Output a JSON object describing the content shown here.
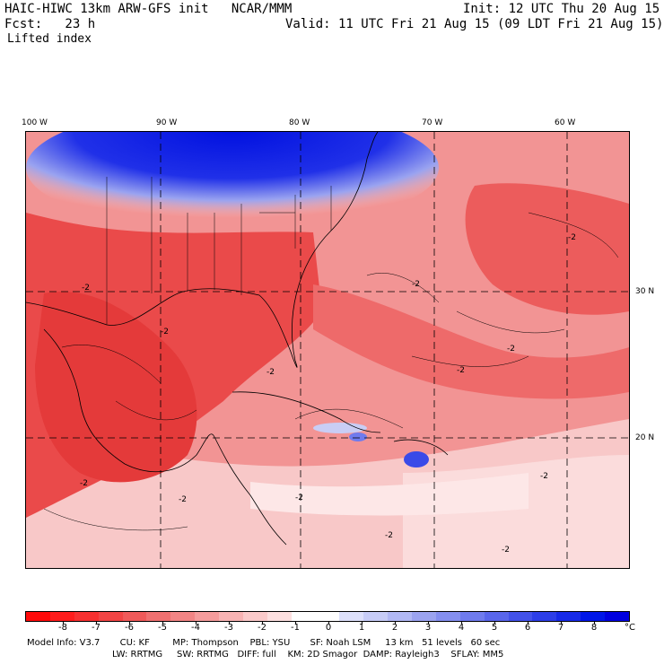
{
  "header": {
    "title_left": "HAIC-HIWC 13km ARW-GFS init   NCAR/MMM",
    "init": "Init: 12 UTC Thu 20 Aug 15",
    "fcst": "Fcst:   23 h",
    "valid": "Valid: 11 UTC Fri 21 Aug 15 (09 LDT Fri 21 Aug 15)",
    "field": "Lifted index"
  },
  "map": {
    "lon_labels": [
      "100 W",
      "90 W",
      "80 W",
      "70 W",
      "60 W"
    ],
    "lat_labels": [
      "30 N",
      "20 N"
    ],
    "contour_labels": [
      "-2",
      "-2",
      "-2",
      "-2",
      "-2",
      "-2",
      "-2",
      "-2",
      "-2",
      "-2",
      "-2",
      "-2",
      "-2"
    ],
    "colors": {
      "ocean_warm": "#f08a8a",
      "land_hot": "#e8363f",
      "cool_blue": "#0010e0",
      "neutral": "#ffffff"
    }
  },
  "colorbar": {
    "ticks": [
      "-8",
      "-7",
      "-6",
      "-5",
      "-4",
      "-3",
      "-2",
      "-1",
      "0",
      "1",
      "2",
      "3",
      "4",
      "5",
      "6",
      "7",
      "8"
    ],
    "unit": "°C",
    "colors": [
      "#ff0a0a",
      "#ff1c1c",
      "#f73030",
      "#f24545",
      "#f05a5a",
      "#f07070",
      "#f28585",
      "#f59c9c",
      "#f8b3b3",
      "#fbcaca",
      "#fde0e0",
      "#ffffff",
      "#ffffff",
      "#dde0fb",
      "#c7ccf7",
      "#b1b8f4",
      "#9ba3f0",
      "#858ff0",
      "#6f7bee",
      "#5966ec",
      "#4352ea",
      "#2d3ee8",
      "#172ae8",
      "#0016e8",
      "#0000e0"
    ]
  },
  "model_info": {
    "line1": "Model Info: V3.7       CU: KF        MP: Thompson    PBL: YSU       SF: Noah LSM     13 km   51 levels   60 sec",
    "line2": "LW: RRTMG     SW: RRTMG   DIFF: full    KM: 2D Smagor  DAMP: Rayleigh3    SFLAY: MM5"
  }
}
